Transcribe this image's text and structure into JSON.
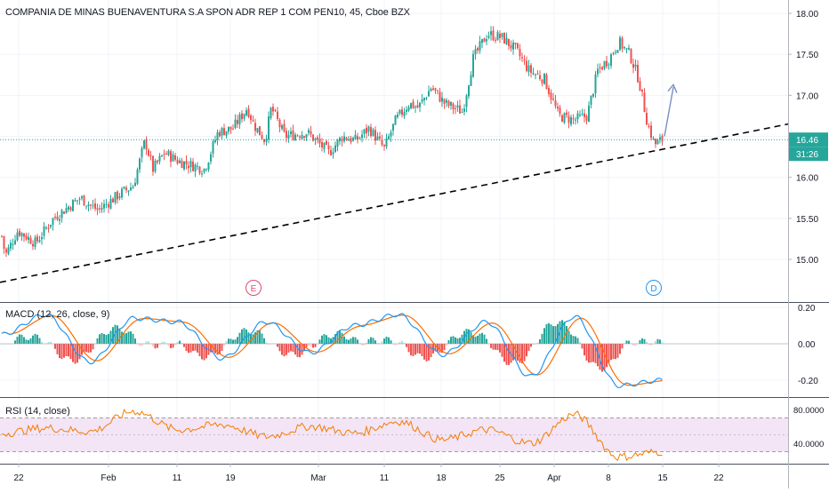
{
  "title": "COMPANIA DE MINAS BUENAVENTURA S.A SPON ADR REP 1 COM PEN10, 45, Cboe BZX",
  "colors": {
    "up": "#26a69a",
    "down": "#ef5350",
    "macd_line": "#2196f3",
    "signal_line": "#ff6d00",
    "rsi_line": "#f57c00",
    "rsi_band": "#f3e5f5",
    "trendline": "#000000",
    "arrow": "#7a8fc2",
    "price_label_bg": "#26a69a",
    "axis_text": "#131722",
    "grid": "#f0f3fa"
  },
  "x_axis_labels": [
    "22",
    "Feb",
    "11",
    "19",
    "Mar",
    "11",
    "18",
    "25",
    "Apr",
    "8",
    "15",
    "22"
  ],
  "chart_data": [
    {
      "type": "candlestick",
      "y_ticks": [
        "18.00",
        "17.50",
        "17.00",
        "16.50",
        "16.00",
        "15.50",
        "15.00"
      ],
      "ylim": [
        14.7,
        18.12
      ],
      "last_price": "16.46",
      "countdown": "31:26",
      "closes_by_date": {
        "22": 15.3,
        "Feb": 15.9,
        "11": 16.3,
        "19": 16.6,
        "Mar": 16.5,
        "11 Mar": 16.35,
        "18": 17.0,
        "25": 17.7,
        "Apr": 16.75,
        "8": 17.45,
        "15": 16.46
      },
      "trendline": {
        "start_price": 14.72,
        "end_price": 16.65,
        "style": "dashed"
      },
      "annotations": [
        "E",
        "D"
      ]
    },
    {
      "type": "line",
      "title": "MACD (12, 26, close, 9)",
      "y_ticks": [
        "0.20",
        "0.00",
        "-0.20"
      ],
      "ylim": [
        -0.27,
        0.22
      ],
      "series": [
        {
          "values": [
            0.05,
            0.16,
            -0.1,
            0.14,
            0.12,
            -0.08,
            0.12,
            -0.05,
            0.1,
            0.16,
            -0.06,
            0.12,
            -0.18,
            0.15,
            -0.23,
            -0.2
          ]
        }
      ]
    },
    {
      "type": "line",
      "title": "RSI (14, close)",
      "y_ticks": [
        "80.0000",
        "40.0000"
      ],
      "ylim": [
        14,
        90
      ],
      "band": [
        30,
        70
      ],
      "series": [
        {
          "values": [
            52,
            58,
            54,
            78,
            56,
            62,
            48,
            60,
            52,
            66,
            44,
            56,
            40,
            74,
            24,
            30
          ]
        }
      ]
    }
  ]
}
